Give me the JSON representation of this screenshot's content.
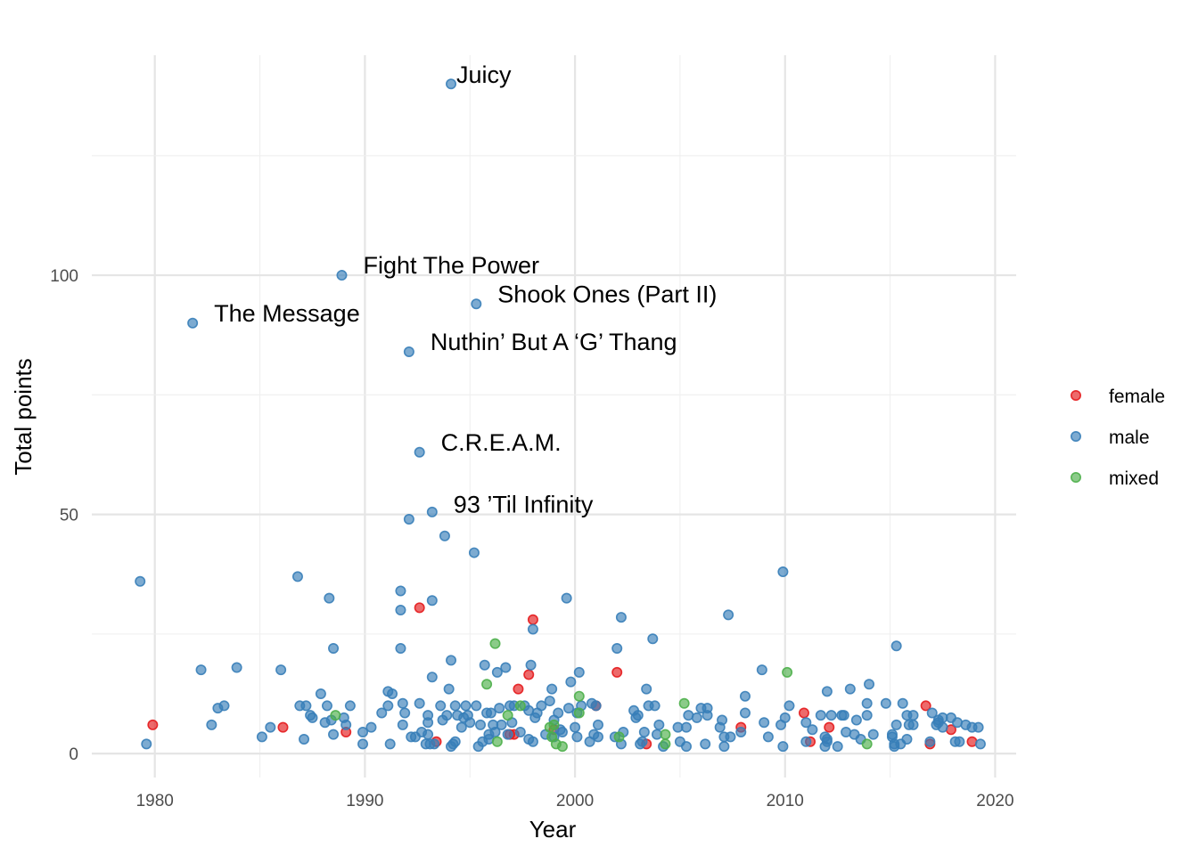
{
  "chart_data": {
    "type": "scatter",
    "xlabel": "Year",
    "ylabel": "Total points",
    "xlim": [
      1977,
      2021
    ],
    "ylim": [
      -5,
      146
    ],
    "xticks": [
      "1980",
      "1990",
      "2000",
      "2010",
      "2020"
    ],
    "yticks": [
      "0",
      "50",
      "100"
    ],
    "grid": true,
    "legend_position": "right",
    "colors": {
      "female": "#E41A1C",
      "male": "#377EB8",
      "mixed": "#4DAF4A"
    },
    "legend": [
      "female",
      "male",
      "mixed"
    ],
    "labels": [
      {
        "text": "Juicy",
        "x": 1994.1,
        "y": 140
      },
      {
        "text": "Fight The Power",
        "x": 1988.9,
        "y": 100
      },
      {
        "text": "Shook Ones (Part II)",
        "x": 1995.3,
        "y": 94
      },
      {
        "text": "The Message",
        "x": 1981.8,
        "y": 90
      },
      {
        "text": "Nuthin’ But A ‘G’ Thang",
        "x": 1992.1,
        "y": 84
      },
      {
        "text": "C.R.E.A.M.",
        "x": 1992.6,
        "y": 63
      },
      {
        "text": "93 ’Til Infinity",
        "x": 1993.2,
        "y": 50
      }
    ],
    "female": [
      [
        1979.9,
        6
      ],
      [
        1986.1,
        5.5
      ],
      [
        1989.1,
        4.5
      ],
      [
        1992.6,
        30.5
      ],
      [
        1993.4,
        2.5
      ],
      [
        1996.9,
        4
      ],
      [
        1997.1,
        4
      ],
      [
        1997.3,
        13.5
      ],
      [
        1997.8,
        16.5
      ],
      [
        1998.0,
        28
      ],
      [
        1999.0,
        5
      ],
      [
        2001.0,
        10
      ],
      [
        2002.0,
        17
      ],
      [
        2003.4,
        2
      ],
      [
        2007.9,
        5.5
      ],
      [
        2010.9,
        8.5
      ],
      [
        2011.2,
        2.5
      ],
      [
        2012.1,
        5.5
      ],
      [
        2016.7,
        10
      ],
      [
        2016.9,
        2
      ],
      [
        2017.9,
        5
      ],
      [
        2018.9,
        2.5
      ]
    ],
    "male": [
      [
        1979.3,
        36
      ],
      [
        1979.6,
        2
      ],
      [
        1982.2,
        17.5
      ],
      [
        1982.7,
        6
      ],
      [
        1983.0,
        9.5
      ],
      [
        1983.3,
        10
      ],
      [
        1983.9,
        18
      ],
      [
        1985.1,
        3.5
      ],
      [
        1985.5,
        5.5
      ],
      [
        1986.0,
        17.5
      ],
      [
        1986.8,
        37
      ],
      [
        1986.9,
        10
      ],
      [
        1987.1,
        3
      ],
      [
        1987.2,
        10
      ],
      [
        1987.4,
        8
      ],
      [
        1987.5,
        7.5
      ],
      [
        1987.9,
        12.5
      ],
      [
        1988.1,
        6.5
      ],
      [
        1988.2,
        10
      ],
      [
        1988.3,
        32.5
      ],
      [
        1988.4,
        7
      ],
      [
        1988.5,
        4
      ],
      [
        1988.5,
        22
      ],
      [
        1989.0,
        7.5
      ],
      [
        1989.1,
        6
      ],
      [
        1989.3,
        10
      ],
      [
        1989.9,
        4.5
      ],
      [
        1989.9,
        2
      ],
      [
        1990.3,
        5.5
      ],
      [
        1990.8,
        8.5
      ],
      [
        1991.1,
        10
      ],
      [
        1991.1,
        13
      ],
      [
        1991.2,
        2
      ],
      [
        1991.3,
        12.5
      ],
      [
        1991.7,
        34
      ],
      [
        1991.7,
        30
      ],
      [
        1991.7,
        22
      ],
      [
        1991.8,
        10.5
      ],
      [
        1991.8,
        6
      ],
      [
        1991.9,
        8.5
      ],
      [
        1992.1,
        49
      ],
      [
        1992.2,
        3.5
      ],
      [
        1992.4,
        3.5
      ],
      [
        1992.6,
        10.5
      ],
      [
        1992.7,
        4.5
      ],
      [
        1992.9,
        2
      ],
      [
        1993.0,
        4
      ],
      [
        1993.0,
        8
      ],
      [
        1993.0,
        6.5
      ],
      [
        1993.1,
        2
      ],
      [
        1993.2,
        32
      ],
      [
        1993.2,
        16
      ],
      [
        1993.3,
        2
      ],
      [
        1993.6,
        10
      ],
      [
        1993.7,
        7
      ],
      [
        1993.8,
        45.5
      ],
      [
        1993.9,
        8
      ],
      [
        1994.0,
        13.5
      ],
      [
        1994.1,
        19.5
      ],
      [
        1994.1,
        1.5
      ],
      [
        1994.2,
        2
      ],
      [
        1994.3,
        10
      ],
      [
        1994.3,
        2.5
      ],
      [
        1994.4,
        8
      ],
      [
        1994.6,
        5.5
      ],
      [
        1994.7,
        7.5
      ],
      [
        1994.8,
        10
      ],
      [
        1994.9,
        8
      ],
      [
        1995.0,
        6.5
      ],
      [
        1995.2,
        42
      ],
      [
        1995.3,
        10
      ],
      [
        1995.4,
        1.5
      ],
      [
        1995.5,
        6
      ],
      [
        1995.6,
        2.5
      ],
      [
        1995.7,
        18.5
      ],
      [
        1995.8,
        8.5
      ],
      [
        1995.9,
        4
      ],
      [
        1995.9,
        3
      ],
      [
        1996.0,
        8.5
      ],
      [
        1996.1,
        6
      ],
      [
        1996.2,
        4.5
      ],
      [
        1996.3,
        17
      ],
      [
        1996.4,
        9.5
      ],
      [
        1996.5,
        6
      ],
      [
        1996.7,
        18
      ],
      [
        1996.8,
        4
      ],
      [
        1996.9,
        10
      ],
      [
        1997.0,
        6.5
      ],
      [
        1997.1,
        10
      ],
      [
        1997.4,
        4.5
      ],
      [
        1997.6,
        10
      ],
      [
        1997.8,
        3
      ],
      [
        1997.8,
        9
      ],
      [
        1997.9,
        18.5
      ],
      [
        1998.0,
        26
      ],
      [
        1998.0,
        2.5
      ],
      [
        1998.1,
        7.5
      ],
      [
        1998.2,
        8.5
      ],
      [
        1998.4,
        10
      ],
      [
        1998.6,
        4
      ],
      [
        1998.8,
        11
      ],
      [
        1998.9,
        13.5
      ],
      [
        1999.0,
        7
      ],
      [
        1999.0,
        3.5
      ],
      [
        1999.2,
        8.5
      ],
      [
        1999.3,
        5
      ],
      [
        1999.4,
        4.5
      ],
      [
        1999.6,
        32.5
      ],
      [
        1999.7,
        9.5
      ],
      [
        1999.8,
        15
      ],
      [
        2000.0,
        5.5
      ],
      [
        2000.1,
        3.5
      ],
      [
        2000.1,
        8.5
      ],
      [
        2000.2,
        17
      ],
      [
        2000.3,
        10
      ],
      [
        2000.7,
        2.5
      ],
      [
        2000.8,
        10.5
      ],
      [
        2000.9,
        4
      ],
      [
        2001.0,
        10
      ],
      [
        2001.1,
        6
      ],
      [
        2001.1,
        3.5
      ],
      [
        2001.9,
        3.5
      ],
      [
        2002.0,
        22
      ],
      [
        2002.2,
        28.5
      ],
      [
        2002.2,
        2
      ],
      [
        2002.3,
        4.5
      ],
      [
        2002.8,
        9
      ],
      [
        2002.9,
        7.5
      ],
      [
        2003.0,
        8
      ],
      [
        2003.1,
        2
      ],
      [
        2003.2,
        2.5
      ],
      [
        2003.3,
        4.5
      ],
      [
        2003.4,
        13.5
      ],
      [
        2003.5,
        10
      ],
      [
        2003.7,
        24
      ],
      [
        2003.8,
        10
      ],
      [
        2003.9,
        4
      ],
      [
        2004.0,
        6
      ],
      [
        2004.2,
        1.5
      ],
      [
        2004.9,
        5.5
      ],
      [
        2005.0,
        2.5
      ],
      [
        2005.3,
        5.5
      ],
      [
        2005.3,
        1.5
      ],
      [
        2005.4,
        8
      ],
      [
        2005.8,
        7.5
      ],
      [
        2006.0,
        9.5
      ],
      [
        2006.2,
        2
      ],
      [
        2006.3,
        9.5
      ],
      [
        2006.3,
        8
      ],
      [
        2006.9,
        5.5
      ],
      [
        2007.0,
        7
      ],
      [
        2007.1,
        3.5
      ],
      [
        2007.1,
        1.5
      ],
      [
        2007.3,
        29
      ],
      [
        2007.4,
        3.5
      ],
      [
        2007.9,
        4.5
      ],
      [
        2008.1,
        8.5
      ],
      [
        2008.1,
        12
      ],
      [
        2008.9,
        17.5
      ],
      [
        2009.0,
        6.5
      ],
      [
        2009.2,
        3.5
      ],
      [
        2009.8,
        6
      ],
      [
        2009.9,
        38
      ],
      [
        2010.0,
        7.5
      ],
      [
        2010.2,
        10
      ],
      [
        2009.9,
        1.5
      ],
      [
        2011.0,
        6.5
      ],
      [
        2011.0,
        2.5
      ],
      [
        2011.3,
        5
      ],
      [
        2011.7,
        8
      ],
      [
        2011.9,
        1.5
      ],
      [
        2011.9,
        3.5
      ],
      [
        2012.0,
        3
      ],
      [
        2012.0,
        2.5
      ],
      [
        2012.0,
        13
      ],
      [
        2012.2,
        8
      ],
      [
        2012.5,
        1.5
      ],
      [
        2012.7,
        8
      ],
      [
        2012.8,
        8
      ],
      [
        2012.9,
        4.5
      ],
      [
        2013.1,
        13.5
      ],
      [
        2013.3,
        4
      ],
      [
        2013.4,
        7
      ],
      [
        2013.6,
        3
      ],
      [
        2013.9,
        8
      ],
      [
        2013.9,
        10.5
      ],
      [
        2014.0,
        14.5
      ],
      [
        2014.2,
        4
      ],
      [
        2014.8,
        10.5
      ],
      [
        2015.1,
        4
      ],
      [
        2015.1,
        3.5
      ],
      [
        2015.2,
        2
      ],
      [
        2015.2,
        1.5
      ],
      [
        2015.3,
        6
      ],
      [
        2015.3,
        22.5
      ],
      [
        2015.5,
        2
      ],
      [
        2015.6,
        10.5
      ],
      [
        2015.8,
        3
      ],
      [
        2015.8,
        8
      ],
      [
        2015.9,
        6
      ],
      [
        2016.1,
        8
      ],
      [
        2016.1,
        6
      ],
      [
        2016.9,
        2.5
      ],
      [
        2017.0,
        8.5
      ],
      [
        2017.2,
        6
      ],
      [
        2017.3,
        6.5
      ],
      [
        2017.3,
        7
      ],
      [
        2017.5,
        7.5
      ],
      [
        2017.5,
        5.5
      ],
      [
        2017.9,
        7.5
      ],
      [
        2018.1,
        2.5
      ],
      [
        2018.2,
        6.5
      ],
      [
        2018.3,
        2.5
      ],
      [
        2018.6,
        6
      ],
      [
        2018.9,
        5.5
      ],
      [
        2019.2,
        5.5
      ],
      [
        2019.3,
        2
      ],
      [
        1992.6,
        63
      ],
      [
        1994.1,
        140
      ],
      [
        1988.9,
        100
      ],
      [
        1995.3,
        94
      ],
      [
        1981.8,
        90
      ],
      [
        1992.1,
        84
      ],
      [
        1993.2,
        50.5
      ]
    ],
    "mixed": [
      [
        1988.6,
        8
      ],
      [
        1995.8,
        14.5
      ],
      [
        1996.2,
        23
      ],
      [
        1996.3,
        2.5
      ],
      [
        1996.8,
        8
      ],
      [
        1997.4,
        10
      ],
      [
        1998.8,
        5.5
      ],
      [
        1998.9,
        3.5
      ],
      [
        1999.0,
        6
      ],
      [
        1999.1,
        2
      ],
      [
        1999.4,
        1.5
      ],
      [
        2000.2,
        8.5
      ],
      [
        2000.2,
        12
      ],
      [
        2002.1,
        3.5
      ],
      [
        2004.3,
        2
      ],
      [
        2004.3,
        4
      ],
      [
        2005.2,
        10.5
      ],
      [
        2010.1,
        17
      ],
      [
        2013.9,
        2
      ]
    ]
  }
}
